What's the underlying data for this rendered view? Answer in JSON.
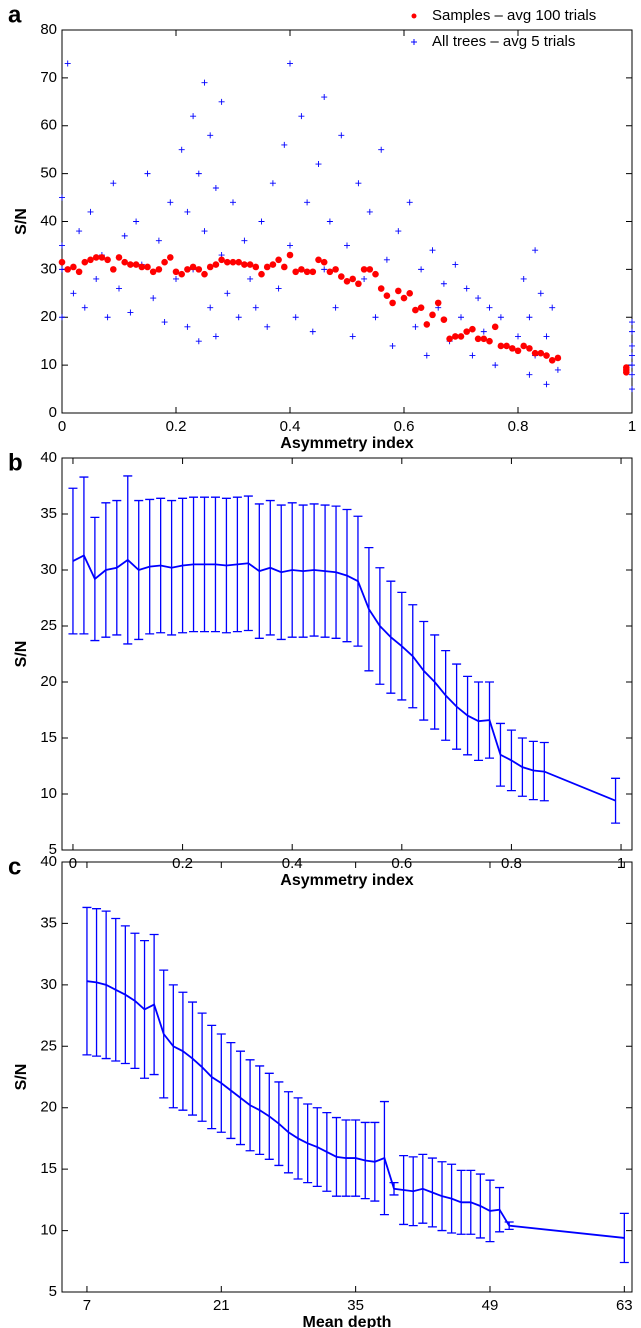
{
  "chart_data": [
    {
      "type": "scatter",
      "panel_label": "a",
      "x_label": "Asymmetry index",
      "y_label": "S/N",
      "xlim": [
        0,
        1
      ],
      "xticks": [
        0,
        0.2,
        0.4,
        0.6,
        0.8,
        1
      ],
      "ylim": [
        0,
        80
      ],
      "yticks": [
        0,
        10,
        20,
        30,
        40,
        50,
        60,
        70,
        80
      ],
      "legend": "upper right",
      "series": [
        {
          "name": "Samples – avg 100 trials",
          "color": "#ff0000",
          "marker": "dot",
          "x": [
            0,
            0.01,
            0.02,
            0.03,
            0.04,
            0.05,
            0.06,
            0.07,
            0.08,
            0.09,
            0.1,
            0.11,
            0.12,
            0.13,
            0.14,
            0.15,
            0.16,
            0.17,
            0.18,
            0.19,
            0.2,
            0.21,
            0.22,
            0.23,
            0.24,
            0.25,
            0.26,
            0.27,
            0.28,
            0.29,
            0.3,
            0.31,
            0.32,
            0.33,
            0.34,
            0.35,
            0.36,
            0.37,
            0.38,
            0.39,
            0.4,
            0.41,
            0.42,
            0.43,
            0.44,
            0.45,
            0.46,
            0.47,
            0.48,
            0.49,
            0.5,
            0.51,
            0.52,
            0.53,
            0.54,
            0.55,
            0.56,
            0.57,
            0.58,
            0.59,
            0.6,
            0.61,
            0.62,
            0.63,
            0.64,
            0.65,
            0.66,
            0.67,
            0.68,
            0.69,
            0.7,
            0.71,
            0.72,
            0.73,
            0.74,
            0.75,
            0.76,
            0.77,
            0.78,
            0.79,
            0.8,
            0.81,
            0.82,
            0.83,
            0.84,
            0.85,
            0.86,
            0.87,
            0.99,
            0.99,
            0.99
          ],
          "values": [
            31.5,
            30,
            30.5,
            29.5,
            31.5,
            32,
            32.5,
            32.5,
            32,
            30,
            32.5,
            31.5,
            31,
            31,
            30.5,
            30.5,
            29.5,
            30,
            31.5,
            32.5,
            29.5,
            29,
            30,
            30.5,
            30,
            29,
            30.5,
            31,
            32,
            31.5,
            31.5,
            31.5,
            31,
            31,
            30.5,
            29,
            30.5,
            31,
            32,
            30.5,
            33,
            29.5,
            30,
            29.5,
            29.5,
            32,
            31.5,
            29.5,
            30,
            28.5,
            27.5,
            28,
            27,
            30,
            30,
            29,
            26,
            24.5,
            23,
            25.5,
            24,
            25,
            21.5,
            22,
            18.5,
            20.5,
            23,
            19.5,
            15.5,
            16,
            16,
            17,
            17.5,
            15.5,
            15.5,
            15,
            18,
            14,
            14,
            13.5,
            13,
            14,
            13.5,
            12.5,
            12.5,
            12,
            11,
            11.5,
            9.5,
            9,
            8.5
          ]
        },
        {
          "name": "All trees – avg 5 trials",
          "color": "#0000ff",
          "marker": "plus",
          "x": [
            0,
            0,
            0,
            0,
            0.01,
            0.02,
            0.03,
            0.04,
            0.05,
            0.06,
            0.07,
            0.08,
            0.09,
            0.1,
            0.11,
            0.12,
            0.13,
            0.14,
            0.15,
            0.16,
            0.17,
            0.18,
            0.19,
            0.2,
            0.21,
            0.22,
            0.22,
            0.23,
            0.23,
            0.24,
            0.24,
            0.25,
            0.25,
            0.26,
            0.26,
            0.27,
            0.27,
            0.28,
            0.28,
            0.29,
            0.3,
            0.31,
            0.32,
            0.33,
            0.34,
            0.35,
            0.36,
            0.37,
            0.38,
            0.39,
            0.4,
            0.4,
            0.41,
            0.42,
            0.43,
            0.44,
            0.45,
            0.46,
            0.46,
            0.47,
            0.48,
            0.49,
            0.5,
            0.51,
            0.52,
            0.53,
            0.54,
            0.55,
            0.56,
            0.57,
            0.58,
            0.59,
            0.6,
            0.61,
            0.62,
            0.63,
            0.64,
            0.65,
            0.66,
            0.67,
            0.68,
            0.69,
            0.7,
            0.71,
            0.72,
            0.73,
            0.74,
            0.75,
            0.76,
            0.77,
            0.8,
            0.81,
            0.82,
            0.82,
            0.83,
            0.83,
            0.84,
            0.85,
            0.85,
            0.86,
            0.87,
            1,
            1,
            1,
            1,
            1,
            1,
            1
          ],
          "values": [
            20,
            45,
            30,
            35,
            73,
            25,
            38,
            22,
            42,
            28,
            33,
            20,
            48,
            26,
            37,
            21,
            40,
            31,
            50,
            24,
            36,
            19,
            44,
            28,
            55,
            18,
            42,
            62,
            30,
            15,
            50,
            69,
            38,
            22,
            58,
            47,
            16,
            33,
            65,
            25,
            44,
            20,
            36,
            28,
            22,
            40,
            18,
            48,
            26,
            56,
            73,
            35,
            20,
            62,
            44,
            17,
            52,
            30,
            66,
            40,
            22,
            58,
            35,
            16,
            48,
            28,
            42,
            20,
            55,
            32,
            14,
            38,
            24,
            44,
            18,
            30,
            12,
            34,
            22,
            27,
            15,
            31,
            20,
            26,
            12,
            24,
            17,
            22,
            10,
            20,
            16,
            28,
            8,
            20,
            34,
            12,
            25,
            6,
            16,
            22,
            9,
            5,
            8,
            10,
            12,
            14,
            17,
            19
          ]
        }
      ]
    },
    {
      "type": "line",
      "panel_label": "b",
      "x_label": "Asymmetry index",
      "y_label": "S/N",
      "xlim": [
        -0.02,
        1.02
      ],
      "xticks": [
        0,
        0.2,
        0.4,
        0.6,
        0.8,
        1
      ],
      "ylim": [
        5,
        40
      ],
      "yticks": [
        5,
        10,
        15,
        20,
        25,
        30,
        35,
        40
      ],
      "color": "#0000ff",
      "x": [
        0,
        0.02,
        0.04,
        0.06,
        0.08,
        0.1,
        0.12,
        0.14,
        0.16,
        0.18,
        0.2,
        0.22,
        0.24,
        0.26,
        0.28,
        0.3,
        0.32,
        0.34,
        0.36,
        0.38,
        0.4,
        0.42,
        0.44,
        0.46,
        0.48,
        0.5,
        0.52,
        0.54,
        0.56,
        0.58,
        0.6,
        0.62,
        0.64,
        0.66,
        0.68,
        0.7,
        0.72,
        0.74,
        0.76,
        0.78,
        0.8,
        0.82,
        0.84,
        0.86,
        0.99
      ],
      "values": [
        30.8,
        31.3,
        29.2,
        30,
        30.2,
        30.9,
        30,
        30.3,
        30.4,
        30.2,
        30.4,
        30.5,
        30.5,
        30.5,
        30.4,
        30.5,
        30.6,
        29.9,
        30.2,
        29.8,
        30,
        29.9,
        30,
        29.9,
        29.8,
        29.5,
        29,
        26.5,
        25,
        24,
        23.2,
        22.3,
        21,
        20,
        18.8,
        17.8,
        17,
        16.5,
        16.6,
        13.5,
        13,
        12.4,
        12.1,
        12,
        9.4
      ],
      "errors": [
        6.5,
        7,
        5.5,
        6,
        6,
        7.5,
        6.2,
        6,
        6,
        6,
        6,
        6,
        6,
        6,
        6,
        6,
        6,
        6,
        6,
        6,
        6,
        5.9,
        5.9,
        5.9,
        5.9,
        5.9,
        5.8,
        5.5,
        5.2,
        5,
        4.8,
        4.6,
        4.4,
        4.2,
        4,
        3.8,
        3.5,
        3.5,
        3.4,
        2.8,
        2.7,
        2.6,
        2.6,
        2.6,
        2
      ]
    },
    {
      "type": "line",
      "panel_label": "c",
      "x_label": "Mean depth",
      "y_label": "S/N",
      "xlim": [
        4.4,
        63.8
      ],
      "xticks": [
        7,
        21,
        35,
        49,
        63
      ],
      "ylim": [
        5,
        40
      ],
      "yticks": [
        5,
        10,
        15,
        20,
        25,
        30,
        35,
        40
      ],
      "color": "#0000ff",
      "x": [
        7,
        8,
        9,
        10,
        11,
        12,
        13,
        14,
        15,
        16,
        17,
        18,
        19,
        20,
        21,
        22,
        23,
        24,
        25,
        26,
        27,
        28,
        29,
        30,
        31,
        32,
        33,
        34,
        35,
        36,
        37,
        38,
        39,
        40,
        41,
        42,
        43,
        44,
        45,
        46,
        47,
        48,
        49,
        50,
        51,
        63
      ],
      "values": [
        30.3,
        30.2,
        30,
        29.6,
        29.2,
        28.7,
        28,
        28.4,
        26,
        25,
        24.6,
        24,
        23.3,
        22.5,
        22,
        21.4,
        20.8,
        20.2,
        19.8,
        19.3,
        18.7,
        18,
        17.5,
        17.1,
        16.8,
        16.4,
        16,
        15.9,
        15.9,
        15.7,
        15.6,
        15.9,
        13.4,
        13.3,
        13.2,
        13.4,
        13.1,
        12.8,
        12.6,
        12.3,
        12.3,
        12,
        11.6,
        11.7,
        10.4,
        9.4
      ],
      "errors": [
        6,
        6,
        6,
        5.8,
        5.6,
        5.5,
        5.6,
        5.7,
        5.2,
        5,
        4.8,
        4.6,
        4.4,
        4.2,
        4,
        3.9,
        3.8,
        3.7,
        3.6,
        3.5,
        3.4,
        3.3,
        3.3,
        3.2,
        3.2,
        3.2,
        3.2,
        3.1,
        3.1,
        3.1,
        3.2,
        4.6,
        0.5,
        2.8,
        2.8,
        2.8,
        2.8,
        2.8,
        2.8,
        2.6,
        2.6,
        2.6,
        2.5,
        1.8,
        0.3,
        2
      ]
    }
  ]
}
